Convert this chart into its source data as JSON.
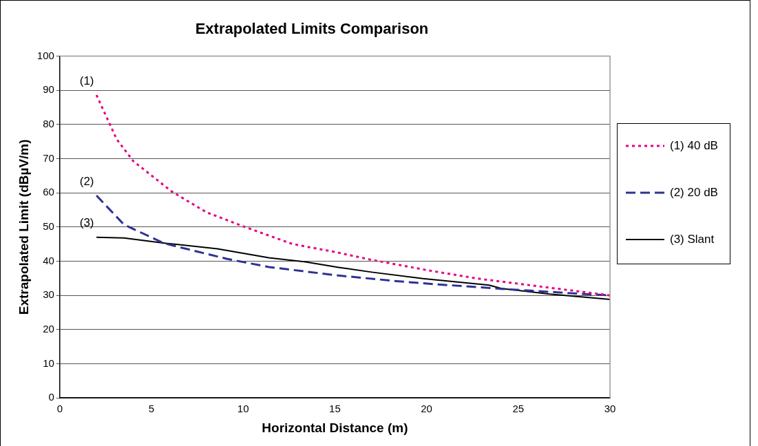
{
  "chart_data": {
    "type": "line",
    "title": "Extrapolated Limits Comparison",
    "xlabel": "Horizontal Distance (m)",
    "ylabel": "Extrapolated Limit (dBµV/m)",
    "xlim": [
      0,
      30
    ],
    "xticks": [
      0,
      5,
      10,
      15,
      20,
      25,
      30
    ],
    "ylim": [
      0,
      100
    ],
    "yticks": [
      0,
      10,
      20,
      30,
      40,
      50,
      60,
      70,
      80,
      90,
      100
    ],
    "grid": "y",
    "legend": "right",
    "marker": "none",
    "annotations": [
      "(1)",
      "(2)",
      "(3)"
    ],
    "series": [
      {
        "name": "(1) 40 dB",
        "color": "#e6007e",
        "line_style": "dotted",
        "x": [
          2,
          3.1,
          4,
          6.1,
          8,
          10.1,
          12.7,
          15,
          16.9,
          19.9,
          22.8,
          25.9,
          30
        ],
        "values": [
          88.6,
          75.7,
          69.3,
          60.4,
          54.3,
          50,
          45,
          42.7,
          40.5,
          37.5,
          34.9,
          32.8,
          30
        ]
      },
      {
        "name": "(2) 20 dB",
        "color": "#2e3192",
        "line_style": "dashed",
        "x": [
          2,
          3.5,
          5.7,
          9.1,
          11.4,
          15.2,
          18.5,
          20.4,
          24.1,
          28,
          30
        ],
        "values": [
          59.2,
          50.7,
          45.2,
          40.7,
          38.3,
          35.8,
          34.1,
          33.3,
          31.9,
          30.6,
          30
        ]
      },
      {
        "name": "(3) Slant",
        "color": "#000000",
        "line_style": "solid",
        "x": [
          2,
          3.5,
          5.7,
          8.6,
          11.4,
          13.4,
          15.2,
          17,
          19.8,
          23.4,
          24.1,
          26.7,
          30
        ],
        "values": [
          47,
          46.8,
          45.3,
          43.6,
          41,
          39.8,
          38.2,
          36.8,
          34.9,
          33,
          32,
          30.4,
          28.8
        ]
      }
    ]
  }
}
